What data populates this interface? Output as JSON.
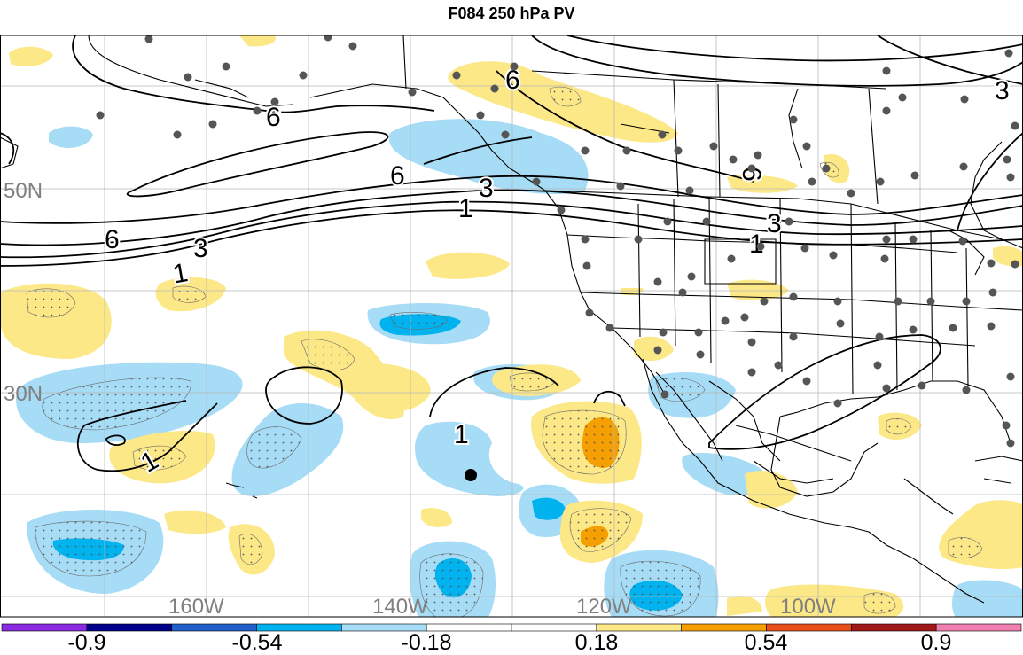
{
  "title": "F084 250 hPa PV",
  "lat_labels": [
    {
      "text": "50N"
    },
    {
      "text": "30N"
    }
  ],
  "lon_labels": [
    {
      "text": "160W"
    },
    {
      "text": "140W"
    },
    {
      "text": "120W"
    },
    {
      "text": "100W"
    }
  ],
  "contour_labels": [
    "6",
    "6",
    "6",
    "6",
    "3",
    "3",
    "3",
    "3",
    "1",
    "1",
    "1",
    "1",
    "1",
    "6"
  ],
  "colorbar": {
    "colors": [
      "#8a2be2",
      "#00008b",
      "#2060c8",
      "#00b2ee",
      "#a6dcf6",
      "#ffffff",
      "#ffffff",
      "#fce887",
      "#f5a000",
      "#e8501a",
      "#a01818",
      "#f080b0"
    ],
    "labels": [
      "-0.9",
      "-0.54",
      "-0.18",
      "0.18",
      "0.54",
      "0.9"
    ]
  },
  "colors": {
    "neg_light": "#a6dcf6",
    "neg_mid": "#00b2ee",
    "pos_light": "#fce887",
    "pos_mid": "#f5a000",
    "station": "#555555",
    "grid": "#b8b8b8",
    "label_gray": "#808080"
  }
}
